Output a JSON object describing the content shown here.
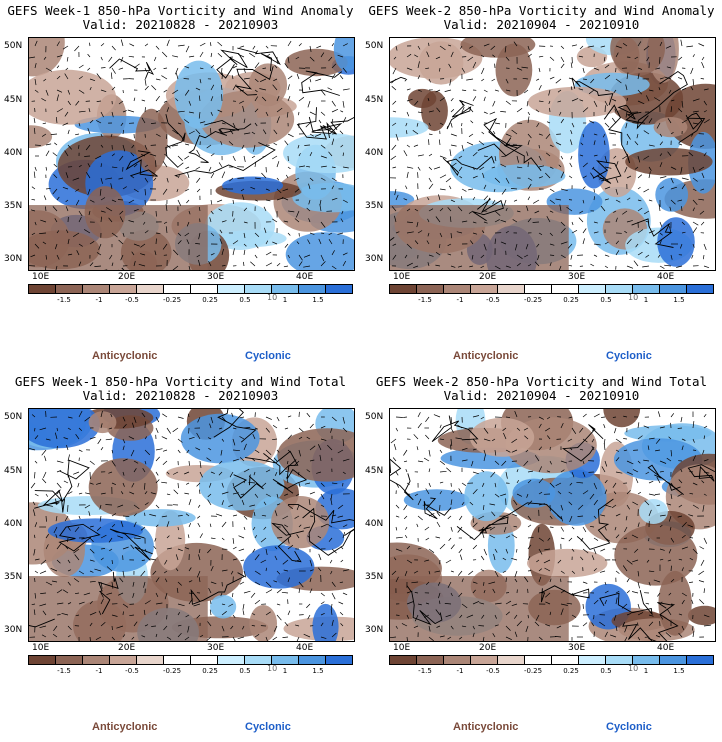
{
  "colors": {
    "anticyclonic_text": "#7a4a3a",
    "cyclonic_text": "#1e5fc9",
    "scale": [
      "#6e4434",
      "#8c6455",
      "#ab8677",
      "#c8a597",
      "#e8d5cc",
      "#ffffff",
      "#ffffff",
      "#cdefff",
      "#a8dcf7",
      "#78bcec",
      "#4b95e0",
      "#2a6fd8"
    ]
  },
  "panels": [
    {
      "id": "w1-anom",
      "title_line1": "GEFS Week-1 850-hPa Vorticity and Wind Anomaly",
      "title_line2": "Valid: 20210828 - 20210903"
    },
    {
      "id": "w2-anom",
      "title_line1": "GEFS Week-2 850-hPa Vorticity and Wind Anomaly",
      "title_line2": "Valid: 20210904 - 20210910"
    },
    {
      "id": "w1-total",
      "title_line1": "GEFS Week-1 850-hPa Vorticity and Wind Total",
      "title_line2": "Valid: 20210828 - 20210903"
    },
    {
      "id": "w2-total",
      "title_line1": "GEFS Week-2 850-hPa Vorticity and Wind Total",
      "title_line2": "Valid: 20210904 - 20210910"
    }
  ],
  "axes": {
    "lat_labels": [
      "50N",
      "45N",
      "40N",
      "35N",
      "30N"
    ],
    "lon_labels": [
      "10E",
      "20E",
      "30E",
      "40E"
    ]
  },
  "colorbar": {
    "tick_labels": [
      "-1.5",
      "-1",
      "-0.5",
      "-0.25",
      "0.25",
      "0.5",
      "1",
      "1.5"
    ],
    "unit": "10"
  },
  "legend": {
    "anticyclonic": "Anticyclonic",
    "cyclonic": "Cyclonic"
  },
  "chart_data": {
    "type": "heatmap",
    "variable": "850-hPa Vorticity and Wind",
    "x_range": [
      7,
      48
    ],
    "y_range": [
      29,
      51
    ],
    "x_ticks": [
      10,
      20,
      30,
      40
    ],
    "y_ticks": [
      50,
      45,
      40,
      35,
      30
    ],
    "colorbar_levels": [
      -1.5,
      -1,
      -0.5,
      -0.25,
      0.25,
      0.5,
      1,
      1.5
    ]
  }
}
